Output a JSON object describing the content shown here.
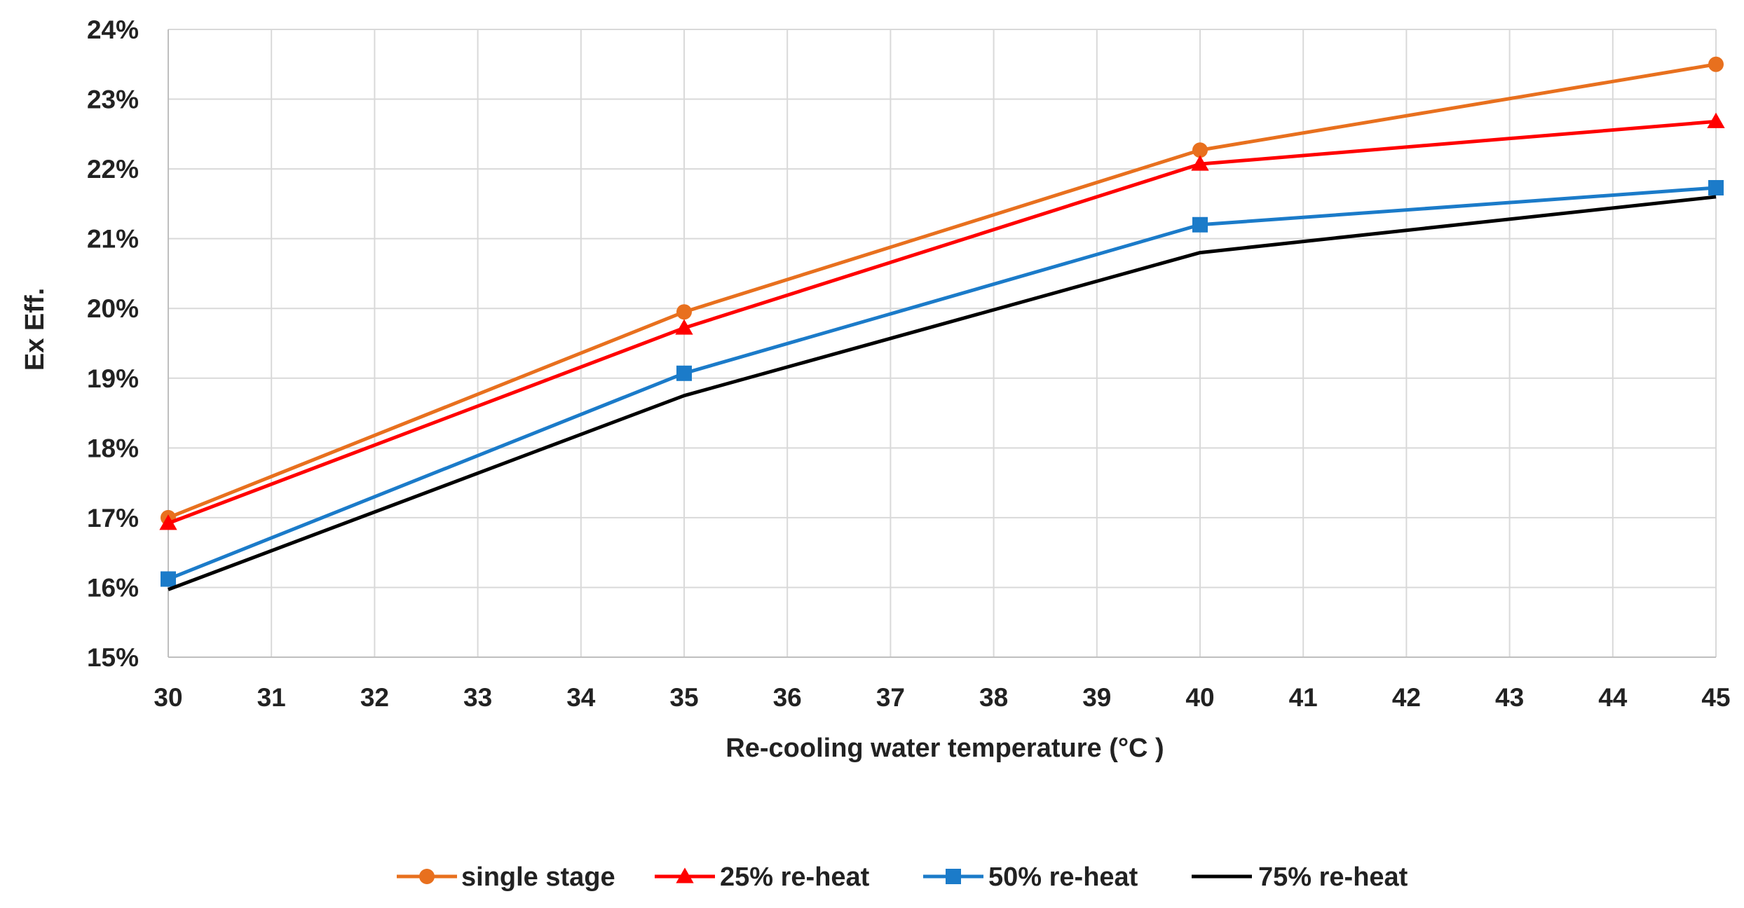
{
  "chart_data": {
    "type": "line",
    "title": "",
    "xlabel": "Re-cooling water temperature (°C )",
    "ylabel": "Ex Eff.",
    "xlim": [
      30,
      45
    ],
    "ylim": [
      15,
      24
    ],
    "x_ticks": [
      30,
      31,
      32,
      33,
      34,
      35,
      36,
      37,
      38,
      39,
      40,
      41,
      42,
      43,
      44,
      45
    ],
    "x_tick_labels": [
      "30",
      "31",
      "32",
      "33",
      "34",
      "35",
      "36",
      "37",
      "38",
      "39",
      "40",
      "41",
      "42",
      "43",
      "44",
      "45"
    ],
    "y_ticks": [
      15,
      16,
      17,
      18,
      19,
      20,
      21,
      22,
      23,
      24
    ],
    "y_tick_labels": [
      "15%",
      "16%",
      "17%",
      "18%",
      "19%",
      "20%",
      "21%",
      "22%",
      "23%",
      "24%"
    ],
    "grid": true,
    "legend_position": "bottom",
    "series": [
      {
        "name": "single stage",
        "color": "#E8701E",
        "marker": "circle",
        "x": [
          30,
          35,
          40,
          45
        ],
        "values": [
          17.0,
          19.95,
          22.27,
          23.5
        ]
      },
      {
        "name": "25% re-heat",
        "color": "#FF0000",
        "marker": "triangle",
        "x": [
          30,
          35,
          40,
          45
        ],
        "values": [
          16.92,
          19.72,
          22.07,
          22.68
        ]
      },
      {
        "name": "50% re-heat",
        "color": "#1B7BC9",
        "marker": "square",
        "x": [
          30,
          35,
          40,
          45
        ],
        "values": [
          16.12,
          19.07,
          21.2,
          21.73
        ]
      },
      {
        "name": "75% re-heat",
        "color": "#000000",
        "marker": "none",
        "x": [
          30,
          35,
          40,
          45
        ],
        "values": [
          15.97,
          18.75,
          20.8,
          21.6
        ]
      }
    ]
  }
}
